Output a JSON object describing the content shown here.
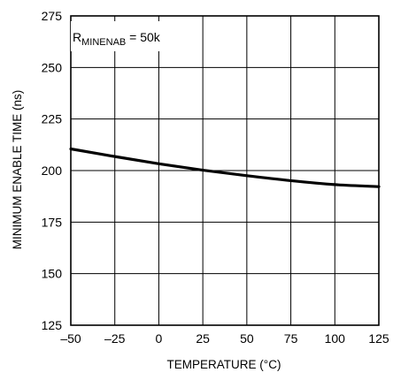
{
  "chart_data": {
    "type": "line",
    "title": "",
    "xlabel": "TEMPERATURE (°C)",
    "ylabel": "MINIMUM ENABLE TIME (ns)",
    "xlim": [
      -50,
      125
    ],
    "ylim": [
      125,
      275
    ],
    "x_ticks": [
      -50,
      -25,
      0,
      25,
      50,
      75,
      100,
      125
    ],
    "y_ticks": [
      125,
      150,
      175,
      200,
      225,
      250,
      275
    ],
    "x_tick_labels": [
      "–50",
      "–25",
      "0",
      "25",
      "50",
      "75",
      "100",
      "125"
    ],
    "y_tick_labels": [
      "125",
      "150",
      "175",
      "200",
      "225",
      "250",
      "275"
    ],
    "grid": true,
    "legend": "none",
    "annotation": {
      "prefix": "R",
      "subscript": "MINENAB",
      "suffix": " = 50k"
    },
    "series": [
      {
        "x": [
          -50,
          -25,
          0,
          25,
          50,
          75,
          100,
          125
        ],
        "y": [
          210.5,
          206.8,
          203.3,
          200.2,
          197.5,
          195.1,
          193.2,
          192.2
        ]
      }
    ],
    "colors": {
      "line": "#000000",
      "grid": "#000000",
      "frame": "#000000"
    }
  }
}
